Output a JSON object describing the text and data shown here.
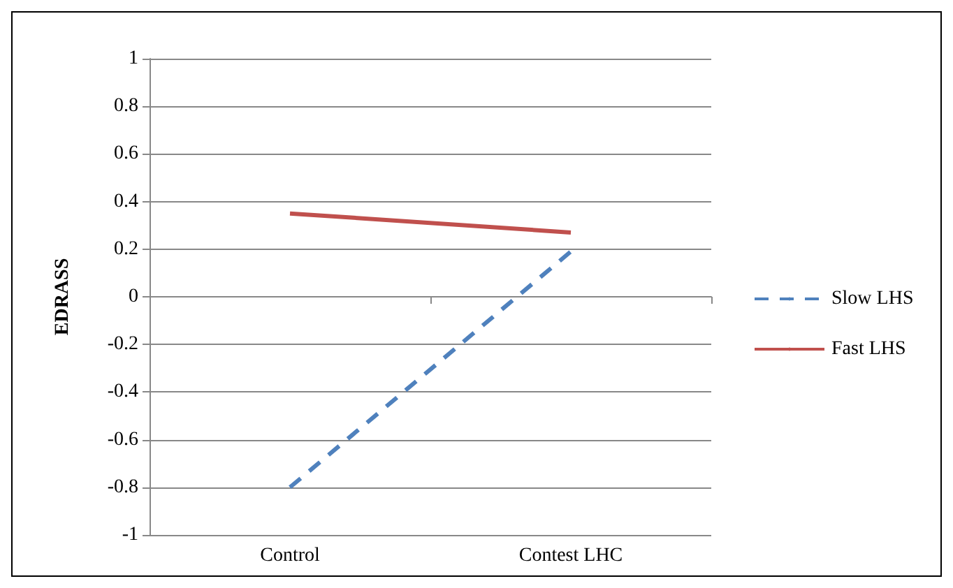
{
  "chart_data": {
    "type": "line",
    "ylabel": "EDRASS",
    "categories": [
      "Control",
      "Contest LHC"
    ],
    "ylim": [
      -1,
      1
    ],
    "yticks": [
      -1,
      -0.8,
      -0.6,
      -0.4,
      -0.2,
      0,
      0.2,
      0.4,
      0.6,
      0.8,
      1
    ],
    "grid": "y",
    "legend": "right",
    "marker": "none",
    "series": [
      {
        "name": "Slow LHS",
        "color": "#4f81bd",
        "values": [
          -0.8,
          0.19
        ],
        "line_style": "dashed"
      },
      {
        "name": "Fast LHS",
        "color": "#c0504d",
        "values": [
          0.35,
          0.27
        ],
        "line_style": "solid"
      }
    ]
  }
}
